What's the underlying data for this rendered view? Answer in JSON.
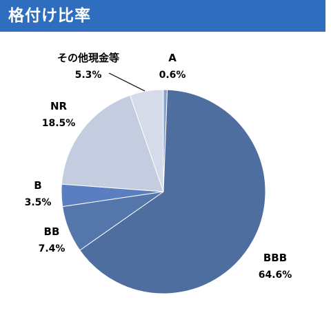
{
  "header": {
    "title": "格付け比率"
  },
  "colors": {
    "header_bg": "#2f6dbe",
    "bbb": "#4e6ea0",
    "bb": "#5476aa",
    "b": "#5a7ec0",
    "nr": "#c3cddf",
    "other": "#d5dbe8",
    "a": "#8a9fcc"
  },
  "chart_data": {
    "type": "pie",
    "start_angle_deg": 0,
    "direction": "clockwise",
    "slices": [
      {
        "label": "A",
        "value": 0.6,
        "display": "0.6%",
        "color": "#8a9fcc"
      },
      {
        "label": "BBB",
        "value": 64.6,
        "display": "64.6%",
        "color": "#4e6ea0"
      },
      {
        "label": "BB",
        "value": 7.4,
        "display": "7.4%",
        "color": "#5476aa"
      },
      {
        "label": "B",
        "value": 3.5,
        "display": "3.5%",
        "color": "#5a7ec0"
      },
      {
        "label": "NR",
        "value": 18.5,
        "display": "18.5%",
        "color": "#c3cddf"
      },
      {
        "label": "その他現金等",
        "value": 5.3,
        "display": "5.3%",
        "color": "#d5dbe8"
      }
    ]
  }
}
